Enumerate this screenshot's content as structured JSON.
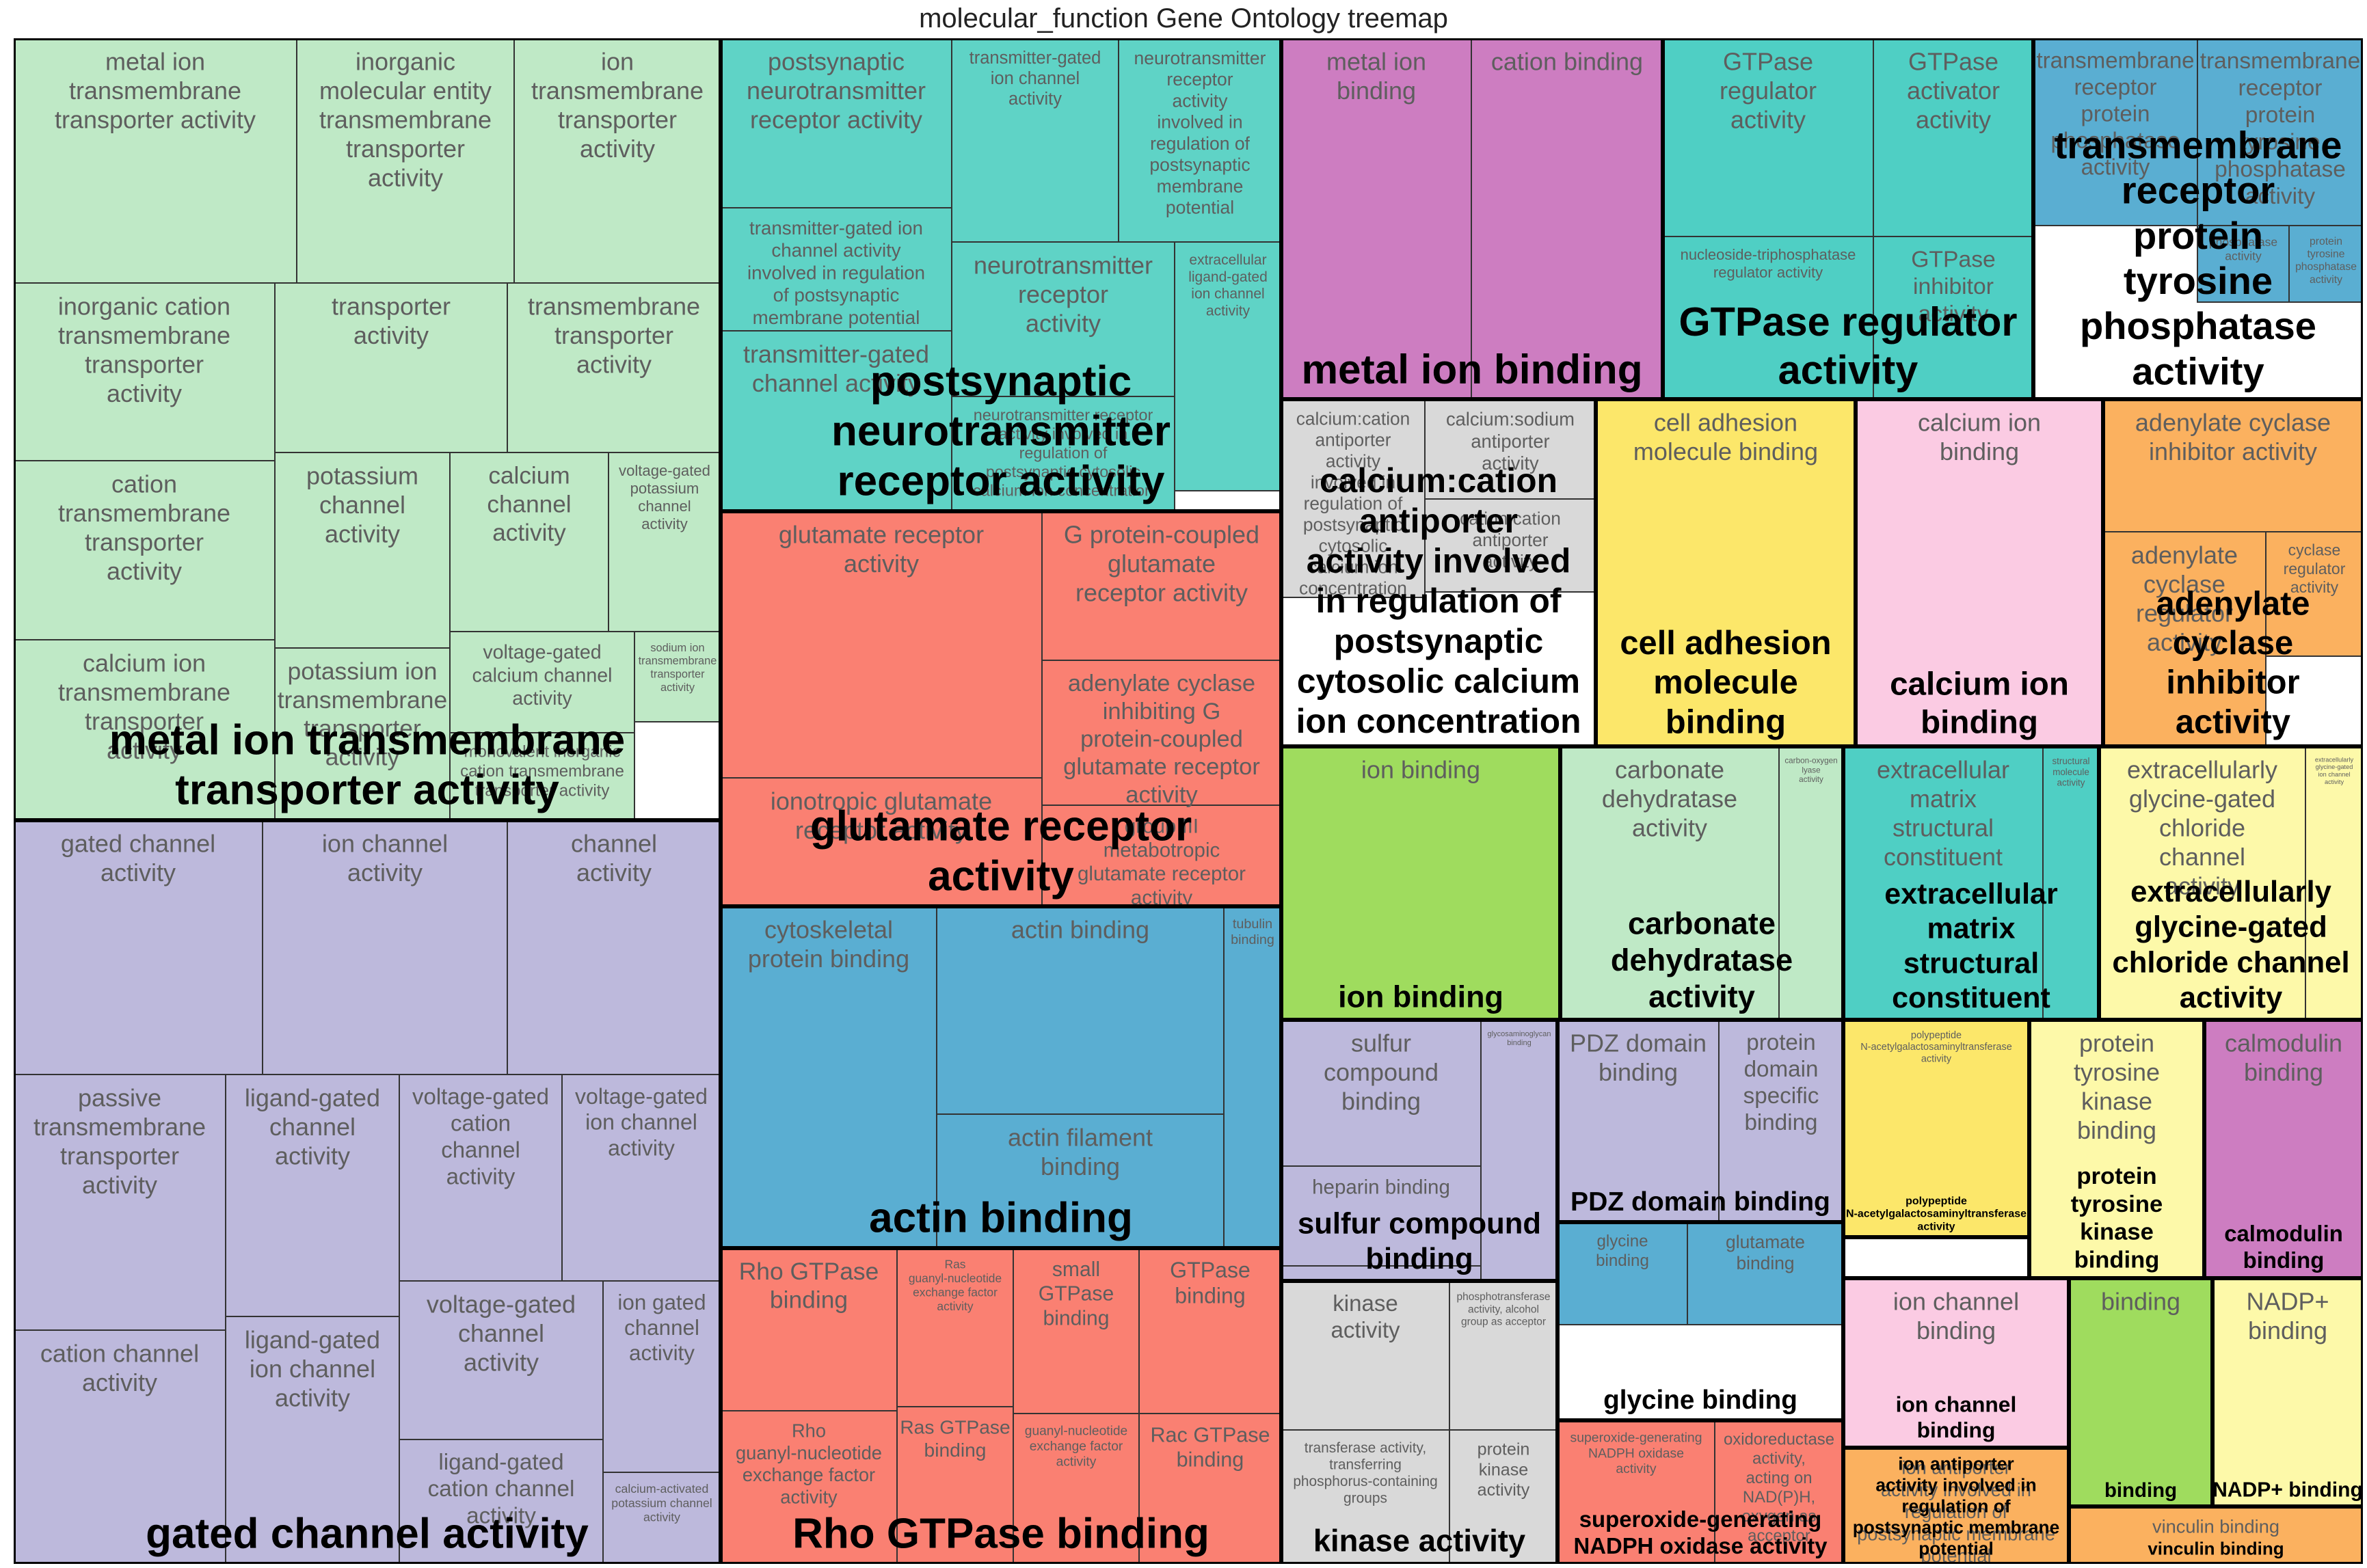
{
  "chart_data": {
    "type": "treemap",
    "title": "molecular_function Gene Ontology treemap",
    "groups": [
      {
        "name": "metal ion transmembrane transporter activity",
        "color": "#bfe9c6",
        "items": [
          {
            "label": "metal ion transmembrane transporter activity"
          },
          {
            "label": "inorganic molecular entity transmembrane transporter activity"
          },
          {
            "label": "ion transmembrane transporter activity"
          },
          {
            "label": "inorganic cation transmembrane transporter activity"
          },
          {
            "label": "transporter activity"
          },
          {
            "label": "transmembrane transporter activity"
          },
          {
            "label": "cation transmembrane transporter activity"
          },
          {
            "label": "potassium channel activity"
          },
          {
            "label": "calcium channel activity"
          },
          {
            "label": "voltage-gated potassium channel activity"
          },
          {
            "label": "calcium ion transmembrane transporter activity"
          },
          {
            "label": "potassium ion transmembrane transporter activity"
          },
          {
            "label": "voltage-gated calcium channel activity"
          },
          {
            "label": "sodium ion transmembrane transporter activity"
          },
          {
            "label": "monovalent inorganic cation transmembrane transporter activity"
          }
        ]
      },
      {
        "name": "postsynaptic neurotransmitter receptor activity",
        "color": "#5fd3c6",
        "items": [
          {
            "label": "postsynaptic neurotransmitter receptor activity"
          },
          {
            "label": "transmitter-gated ion channel activity"
          },
          {
            "label": "neurotransmitter receptor activity involved in regulation of postsynaptic membrane potential"
          },
          {
            "label": "transmitter-gated ion channel activity involved in regulation of postsynaptic membrane potential"
          },
          {
            "label": "neurotransmitter receptor activity"
          },
          {
            "label": "extracellular ligand-gated ion channel activity"
          },
          {
            "label": "transmitter-gated channel activity"
          },
          {
            "label": "neurotransmitter receptor activity involved in regulation of postsynaptic cytosolic calcium ion concentration"
          }
        ]
      },
      {
        "name": "glutamate receptor activity",
        "color": "#fa8072",
        "items": [
          {
            "label": "glutamate receptor activity"
          },
          {
            "label": "G protein-coupled glutamate receptor activity"
          },
          {
            "label": "adenylate cyclase inhibiting G protein-coupled glutamate receptor activity"
          },
          {
            "label": "ionotropic glutamate receptor activity"
          },
          {
            "label": "group III metabotropic glutamate receptor activity"
          }
        ]
      },
      {
        "name": "actin binding",
        "color": "#5aaed2",
        "items": [
          {
            "label": "cytoskeletal protein binding"
          },
          {
            "label": "actin binding"
          },
          {
            "label": "tubulin binding"
          },
          {
            "label": "actin filament binding"
          }
        ]
      },
      {
        "name": "Rho GTPase binding",
        "color": "#fa8072",
        "items": [
          {
            "label": "Rho GTPase binding"
          },
          {
            "label": "Ras guanyl-nucleotide exchange factor activity"
          },
          {
            "label": "small GTPase binding"
          },
          {
            "label": "GTPase binding"
          },
          {
            "label": "Rho guanyl-nucleotide exchange factor activity"
          },
          {
            "label": "Ras GTPase binding"
          },
          {
            "label": "guanyl-nucleotide exchange factor activity"
          },
          {
            "label": "Rac GTPase binding"
          }
        ]
      },
      {
        "name": "gated channel activity",
        "color": "#bdb9dc",
        "items": [
          {
            "label": "gated channel activity"
          },
          {
            "label": "ion channel activity"
          },
          {
            "label": "channel activity"
          },
          {
            "label": "passive transmembrane transporter activity"
          },
          {
            "label": "ligand-gated channel activity"
          },
          {
            "label": "voltage-gated cation channel activity"
          },
          {
            "label": "voltage-gated ion channel activity"
          },
          {
            "label": "cation channel activity"
          },
          {
            "label": "ligand-gated ion channel activity"
          },
          {
            "label": "voltage-gated channel activity"
          },
          {
            "label": "ion gated channel activity"
          },
          {
            "label": "ligand-gated cation channel activity"
          },
          {
            "label": "calcium-activated potassium channel activity"
          }
        ]
      },
      {
        "name": "metal ion binding",
        "color": "#cd7dc1",
        "items": [
          {
            "label": "metal ion binding"
          },
          {
            "label": "cation binding"
          }
        ]
      },
      {
        "name": "GTPase regulator activity",
        "color": "#4fcfc4",
        "items": [
          {
            "label": "GTPase regulator activity"
          },
          {
            "label": "GTPase activator activity"
          },
          {
            "label": "nucleoside-triphosphatase regulator activity"
          },
          {
            "label": "GTPase inhibitor activity"
          }
        ]
      },
      {
        "name": "transmembrane receptor protein tyrosine phosphatase activity",
        "color": "#5aaed2",
        "items": [
          {
            "label": "transmembrane receptor protein phosphatase activity"
          },
          {
            "label": "transmembrane receptor protein tyrosine phosphatase activity"
          },
          {
            "label": "phosphatase activity"
          },
          {
            "label": "protein tyrosine phosphatase activity"
          }
        ]
      },
      {
        "name": "calcium:cation antiporter activity involved in regulation of postsynaptic cytosolic calcium ion concentration",
        "color": "#d9d9d9",
        "items": [
          {
            "label": "calcium:cation antiporter activity involved in regulation of postsynaptic cytosolic calcium ion concentration"
          },
          {
            "label": "calcium:sodium antiporter activity"
          },
          {
            "label": "cation:cation antiporter activity"
          }
        ]
      },
      {
        "name": "cell adhesion molecule binding",
        "color": "#fce76a",
        "items": [
          {
            "label": "cell adhesion molecule binding"
          }
        ]
      },
      {
        "name": "calcium ion binding",
        "color": "#fbcbe3",
        "items": [
          {
            "label": "calcium ion binding"
          }
        ]
      },
      {
        "name": "adenylate cyclase inhibitor activity",
        "color": "#fbb15f",
        "items": [
          {
            "label": "adenylate cyclase inhibitor activity"
          },
          {
            "label": "adenylate cyclase regulator activity"
          },
          {
            "label": "cyclase regulator activity"
          }
        ]
      },
      {
        "name": "ion binding",
        "color": "#9fdc5e",
        "items": [
          {
            "label": "ion binding"
          }
        ]
      },
      {
        "name": "carbonate dehydratase activity",
        "color": "#bfe9c6",
        "items": [
          {
            "label": "carbonate dehydratase activity"
          },
          {
            "label": "carbon-oxygen lyase activity"
          }
        ]
      },
      {
        "name": "extracellular matrix structural constituent",
        "color": "#4fcfc4",
        "items": [
          {
            "label": "extracellular matrix structural constituent"
          },
          {
            "label": "structural molecule activity"
          }
        ]
      },
      {
        "name": "extracellularly glycine-gated chloride channel activity",
        "color": "#fdf9a9",
        "items": [
          {
            "label": "extracellularly glycine-gated chloride channel activity"
          },
          {
            "label": "extracellularly glycine-gated ion channel activity"
          }
        ]
      },
      {
        "name": "sulfur compound binding",
        "color": "#bdb9dc",
        "items": [
          {
            "label": "sulfur compound binding"
          },
          {
            "label": "glycosaminoglycan binding"
          },
          {
            "label": "heparin binding"
          }
        ]
      },
      {
        "name": "PDZ domain binding",
        "color": "#bdb9dc",
        "items": [
          {
            "label": "PDZ domain binding"
          },
          {
            "label": "protein domain specific binding"
          }
        ]
      },
      {
        "name": "polypeptide N-acetylgalactosaminyltransferase activity",
        "color": "#fce76a",
        "items": [
          {
            "label": "polypeptide N-acetylgalactosaminyltransferase activity"
          }
        ]
      },
      {
        "name": "protein tyrosine kinase binding",
        "color": "#fdf9a9",
        "items": [
          {
            "label": "protein tyrosine kinase binding"
          }
        ]
      },
      {
        "name": "calmodulin binding",
        "color": "#cd7dc1",
        "items": [
          {
            "label": "calmodulin binding"
          }
        ]
      },
      {
        "name": "glycine binding",
        "color": "#5aaed2",
        "items": [
          {
            "label": "glycine binding"
          },
          {
            "label": "glutamate binding"
          }
        ]
      },
      {
        "name": "kinase activity",
        "color": "#d9d9d9",
        "items": [
          {
            "label": "kinase activity"
          },
          {
            "label": "phosphotransferase activity, alcohol group as acceptor"
          },
          {
            "label": "transferase activity, transferring phosphorus-containing groups"
          },
          {
            "label": "protein kinase activity"
          }
        ]
      },
      {
        "name": "ion channel binding",
        "color": "#fbcbe3",
        "items": [
          {
            "label": "ion channel binding"
          }
        ]
      },
      {
        "name": "binding",
        "color": "#9fdc5e",
        "items": [
          {
            "label": "binding"
          }
        ]
      },
      {
        "name": "NADP+ binding",
        "color": "#fdf9a9",
        "items": [
          {
            "label": "NADP+ binding"
          }
        ]
      },
      {
        "name": "superoxide-generating NADPH oxidase activity",
        "color": "#fa8072",
        "items": [
          {
            "label": "superoxide-generating NADPH oxidase activity"
          },
          {
            "label": "oxidoreductase activity, acting on NAD(P)H, oxygen as acceptor"
          }
        ]
      },
      {
        "name": "ion antiporter activity involved in regulation of postsynaptic membrane potential",
        "color": "#fbb15f",
        "items": [
          {
            "label": "ion antiporter activity involved in regulation of postsynaptic membrane potential"
          }
        ]
      },
      {
        "name": "vinculin binding",
        "color": "#fbb15f",
        "items": [
          {
            "label": "vinculin binding"
          }
        ]
      }
    ]
  }
}
